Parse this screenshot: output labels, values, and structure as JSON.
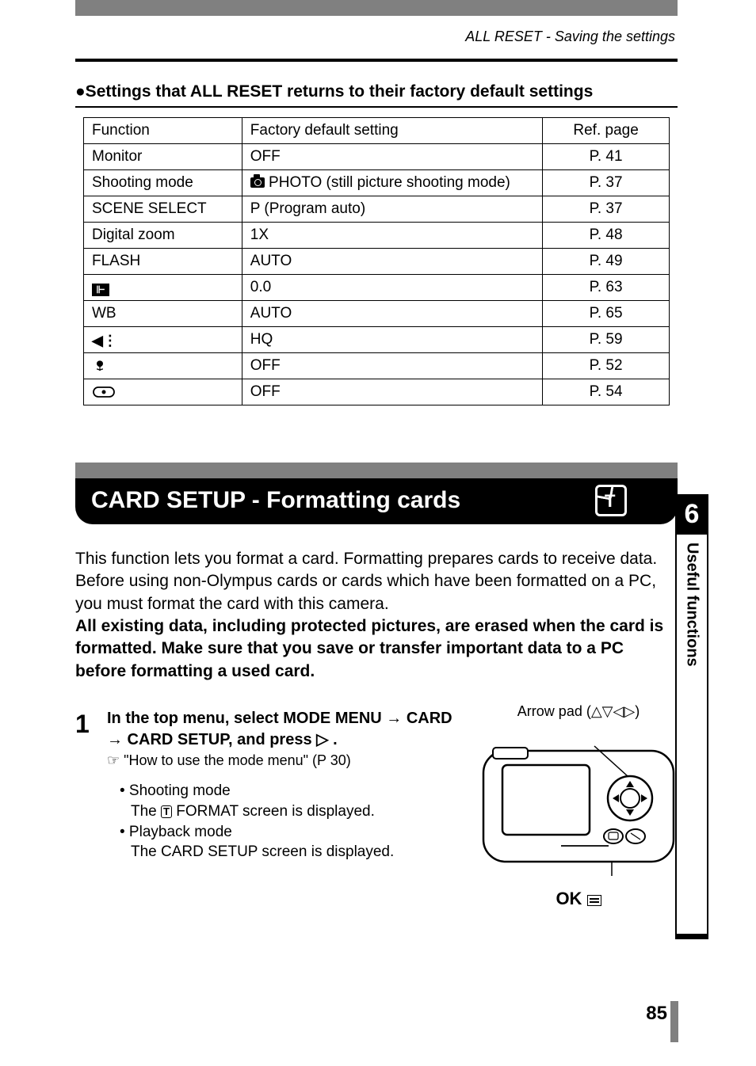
{
  "header": {
    "running": "ALL RESET - Saving the settings"
  },
  "section1": {
    "bullet_title": "●Settings that ALL RESET returns to their factory default settings",
    "headers": {
      "c1": "Function",
      "c2": "Factory default setting",
      "c3": "Ref. page"
    },
    "rows": [
      {
        "func": "Monitor",
        "setting": "OFF",
        "ref": "P. 41",
        "icon": null
      },
      {
        "func": "Shooting mode",
        "setting": "PHOTO (still picture shooting mode)",
        "ref": "P. 37",
        "icon": "camera"
      },
      {
        "func": "SCENE SELECT",
        "setting": "P (Program auto)",
        "ref": "P. 37",
        "icon": null
      },
      {
        "func": "Digital zoom",
        "setting": "1X",
        "ref": "P. 48",
        "icon": null
      },
      {
        "func": "FLASH",
        "setting": "AUTO",
        "ref": "P. 49",
        "icon": null
      },
      {
        "func": "",
        "setting": "0.0",
        "ref": "P. 63",
        "icon": "exposure",
        "funcIcon": "exposure"
      },
      {
        "func": "WB",
        "setting": "AUTO",
        "ref": "P. 65",
        "icon": null
      },
      {
        "func": "",
        "setting": "HQ",
        "ref": "P. 59",
        "icon": null,
        "funcIcon": "record"
      },
      {
        "func": "",
        "setting": "OFF",
        "ref": "P. 52",
        "icon": null,
        "funcIcon": "macro"
      },
      {
        "func": "",
        "setting": "OFF",
        "ref": "P. 54",
        "icon": null,
        "funcIcon": "spot"
      }
    ]
  },
  "section2": {
    "title": "CARD SETUP - Formatting cards",
    "para1": "This function lets you format a card. Formatting prepares cards to receive data. Before using non-Olympus cards or cards which have been formatted on a PC, you must format the card with this camera.",
    "para2": "All existing data, including protected pictures, are erased when the card is formatted. Make sure that you save or transfer important data to a PC before formatting a used card.",
    "step_num": "1",
    "step_line1": "In the top menu, select MODE MENU → CARD → CARD SETUP, and press ▷ .",
    "step_ref": "☞ \"How to use the mode menu\" (P 30)",
    "bullet1_title": "• Shooting mode",
    "bullet1_body_a": "The ",
    "bullet1_body_b": " FORMAT screen is displayed.",
    "bullet2_title": "• Playback mode",
    "bullet2_body": "The CARD SETUP screen is displayed.",
    "arrow_label": "Arrow pad (△▽◁▷)",
    "ok_label": "OK"
  },
  "sidebar": {
    "chapter": "6",
    "title": "Useful functions"
  },
  "page": "85",
  "colors": {
    "gray": "#808080",
    "black": "#000000",
    "white": "#ffffff"
  }
}
